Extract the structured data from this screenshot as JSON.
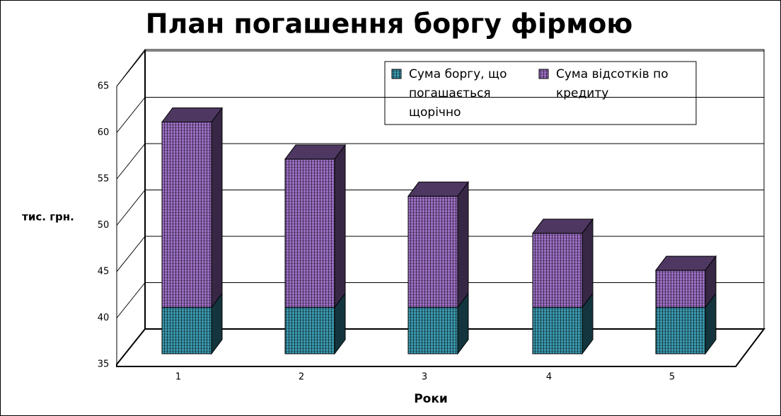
{
  "chart_data": {
    "type": "bar3d_stacked",
    "title": "План погашення боргу фірмою",
    "x_label": "Роки",
    "y_label": "тис. грн.",
    "categories": [
      "1",
      "2",
      "3",
      "4",
      "5"
    ],
    "series": [
      {
        "name": "Сума боргу, що погашається щорічно",
        "color": "#3a98ae",
        "values": [
          40,
          40,
          40,
          40,
          40
        ]
      },
      {
        "name": "Сума відсотків по кредиту",
        "color": "#9c6fc4",
        "values": [
          20,
          16,
          12,
          8,
          4
        ]
      }
    ],
    "ylim": [
      35,
      65
    ],
    "yticks": [
      35,
      40,
      45,
      50,
      55,
      60,
      65
    ],
    "grid": true
  }
}
